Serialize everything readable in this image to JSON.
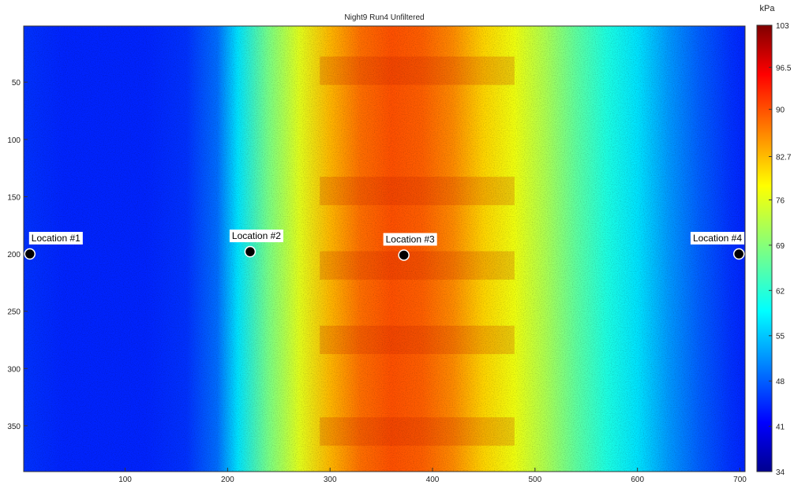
{
  "chart_data": {
    "type": "heatmap",
    "title": "Night9 Run4 Unfiltered",
    "xlabel": "",
    "ylabel": "",
    "xlim": [
      1,
      705
    ],
    "ylim": [
      1,
      390
    ],
    "y_reversed": true,
    "xticks": [
      100,
      200,
      300,
      400,
      500,
      600,
      700
    ],
    "yticks": [
      50,
      100,
      150,
      200,
      250,
      300,
      350
    ],
    "colorbar": {
      "label": "kPa",
      "min": 34,
      "max": 103,
      "ticks": [
        103,
        96.5,
        90,
        82.7,
        76,
        69,
        62,
        55,
        48,
        41,
        34
      ],
      "colormap": [
        "#00008f",
        "#0000ff",
        "#00ffff",
        "#ffff00",
        "#ff0000",
        "#800000"
      ]
    },
    "column_profile": {
      "x": [
        1,
        40,
        80,
        120,
        160,
        190,
        210,
        240,
        270,
        300,
        330,
        360,
        390,
        420,
        450,
        480,
        510,
        540,
        570,
        600,
        630,
        660,
        690,
        705
      ],
      "kpa": [
        45,
        44,
        44,
        44,
        45,
        49,
        57,
        68,
        76,
        83,
        88,
        90,
        89,
        86,
        81,
        77,
        72,
        66,
        61,
        57,
        52,
        48,
        45,
        44
      ]
    },
    "row_hotbands_y": [
      40,
      145,
      210,
      275,
      355
    ],
    "markers": [
      {
        "label": "Location #1",
        "x": 7,
        "y": 200
      },
      {
        "label": "Location #2",
        "x": 222,
        "y": 198
      },
      {
        "label": "Location #3",
        "x": 372,
        "y": 201
      },
      {
        "label": "Location #4",
        "x": 699,
        "y": 200
      }
    ]
  }
}
